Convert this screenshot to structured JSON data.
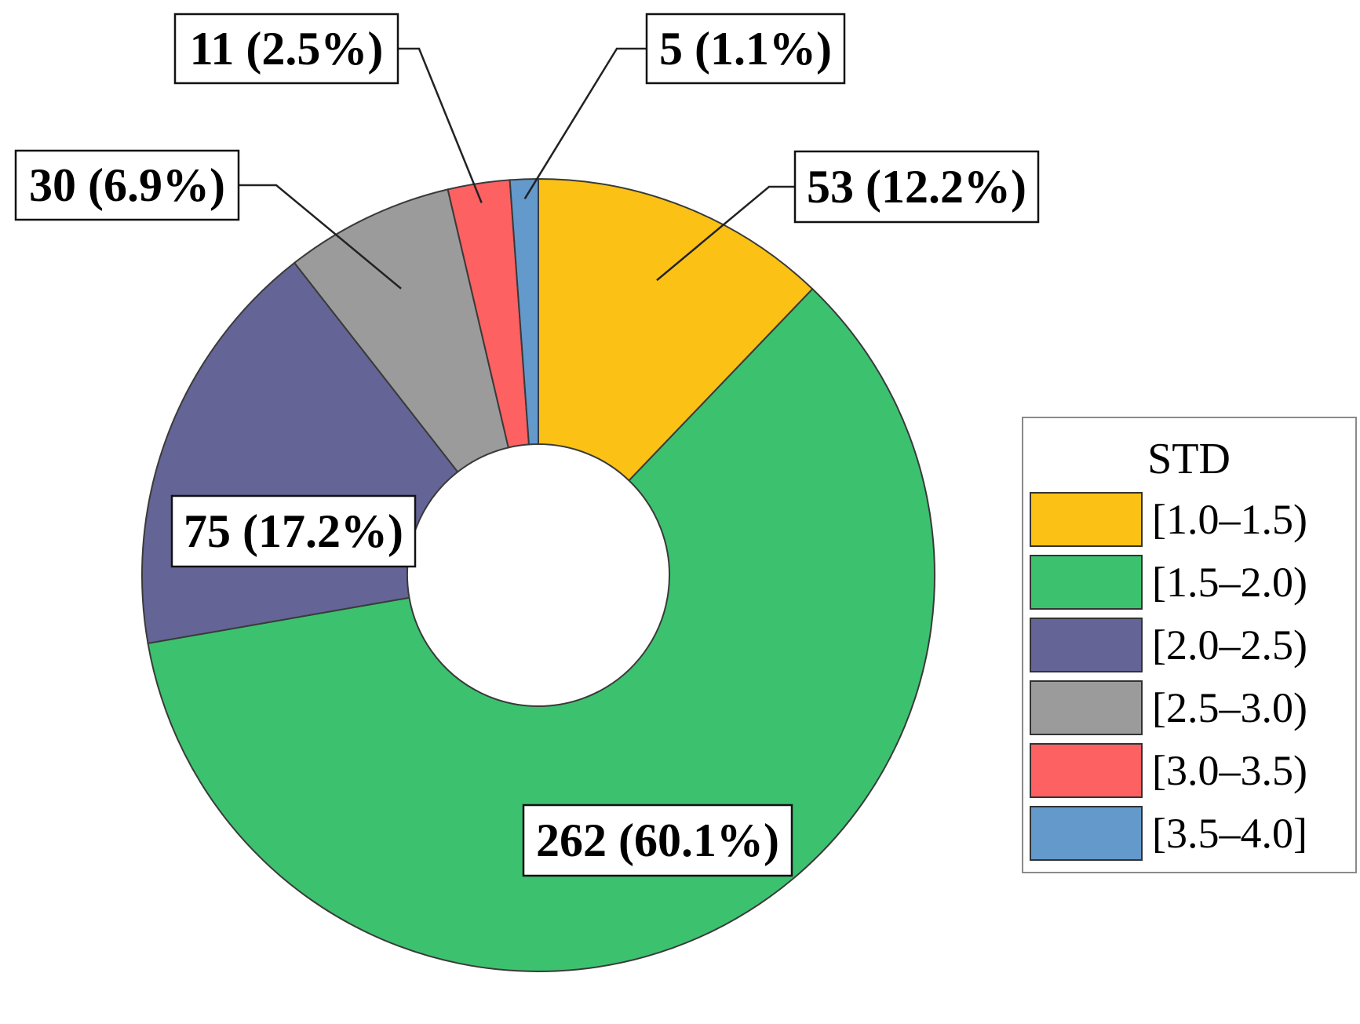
{
  "chart_data": {
    "type": "pie",
    "donut": true,
    "categories": [
      "[1.0–1.5)",
      "[1.5–2.0)",
      "[2.0–2.5)",
      "[2.5–3.0)",
      "[3.0–3.5)",
      "[3.5–4.0]"
    ],
    "values": [
      53,
      262,
      75,
      30,
      11,
      5
    ],
    "percentages": [
      12.2,
      60.1,
      17.2,
      6.9,
      2.5,
      1.1
    ],
    "data_labels": [
      "53 (12.2%)",
      "262 (60.1%)",
      "75 (17.2%)",
      "30 (6.9%)",
      "11 (2.5%)",
      "5 (1.1%)"
    ],
    "colors": [
      "#FBC115",
      "#3CC26F",
      "#646496",
      "#9B9B9B",
      "#FD6162",
      "#6499CB"
    ],
    "legend": {
      "title": "STD",
      "position": "right",
      "entries": [
        "[1.0–1.5)",
        "[1.5–2.0)",
        "[2.0–2.5)",
        "[2.5–3.0)",
        "[3.0–3.5)",
        "[3.5–4.0]"
      ]
    }
  }
}
